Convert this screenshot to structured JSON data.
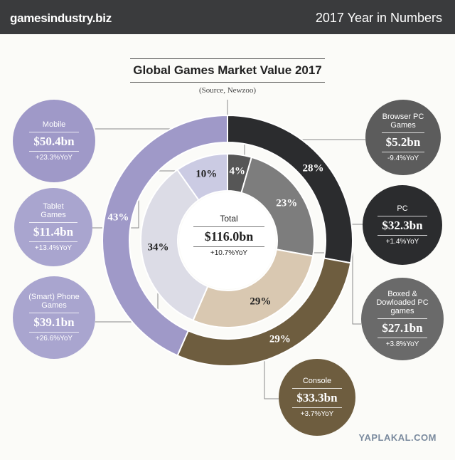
{
  "header": {
    "brand": "gamesindustry.biz",
    "headline": "2017 Year in Numbers"
  },
  "watermark": "YAPLAKAL.COM",
  "chart_data": {
    "type": "pie",
    "title": "Global Games Market Value 2017",
    "subtitle": "(Source, Newzoo)",
    "total": {
      "label": "Total",
      "value": "$116.0bn",
      "yoy": "+10.7%YoY"
    },
    "outer_ring": [
      {
        "name": "PC",
        "value": 32.3,
        "value_label": "$32.3bn",
        "yoy": "+1.4%YoY",
        "percent": 28,
        "percent_label": "28%",
        "color": "#2b2c2e"
      },
      {
        "name": "Console",
        "value": 33.3,
        "value_label": "$33.3bn",
        "yoy": "+3.7%YoY",
        "percent": 29,
        "percent_label": "29%",
        "color": "#6e5d3f"
      },
      {
        "name": "Mobile",
        "value": 50.4,
        "value_label": "$50.4bn",
        "yoy": "+23.3%YoY",
        "percent": 43,
        "percent_label": "43%",
        "color": "#9f99c8"
      }
    ],
    "inner_ring": [
      {
        "name": "Browser PC Games",
        "value": 5.2,
        "value_label": "$5.2bn",
        "yoy": "-9.4%YoY",
        "percent": 4,
        "percent_label": "4%",
        "color": "#565656"
      },
      {
        "name": "Boxed & Dowloaded PC games",
        "value": 27.1,
        "value_label": "$27.1bn",
        "yoy": "+3.8%YoY",
        "percent": 23,
        "percent_label": "23%",
        "color": "#7d7d7d"
      },
      {
        "name": "Console",
        "value": 33.3,
        "value_label": "$33.3bn",
        "yoy": "+3.7%YoY",
        "percent": 29,
        "percent_label": "29%",
        "color": "#d9c8b1"
      },
      {
        "name": "(Smart) Phone Games",
        "value": 39.1,
        "value_label": "$39.1bn",
        "yoy": "+26.6%YoY",
        "percent": 34,
        "percent_label": "34%",
        "color": "#dcdce6"
      },
      {
        "name": "Tablet Games",
        "value": 11.4,
        "value_label": "$11.4bn",
        "yoy": "+13.4%YoY",
        "percent": 10,
        "percent_label": "10%",
        "color": "#cbcbe3"
      }
    ]
  },
  "bubbles": [
    {
      "name": "Mobile",
      "value": "$50.4bn",
      "yoy": "+23.3%YoY",
      "color": "#9f99c8"
    },
    {
      "name": "Tablet Games",
      "value": "$11.4bn",
      "yoy": "+13.4%YoY",
      "color": "#a9a5cf"
    },
    {
      "name": "(Smart) Phone Games",
      "value": "$39.1bn",
      "yoy": "+26.6%YoY",
      "color": "#a9a5cf"
    },
    {
      "name": "Browser PC Games",
      "value": "$5.2bn",
      "yoy": "-9.4%YoY",
      "color": "#5c5c5c"
    },
    {
      "name": "PC",
      "value": "$32.3bn",
      "yoy": "+1.4%YoY",
      "color": "#2b2c2e"
    },
    {
      "name": "Boxed & Dowloaded PC games",
      "value": "$27.1bn",
      "yoy": "+3.8%YoY",
      "color": "#6a6a6a"
    },
    {
      "name": "Console",
      "value": "$33.3bn",
      "yoy": "+3.7%YoY",
      "color": "#6e5d3f"
    }
  ]
}
